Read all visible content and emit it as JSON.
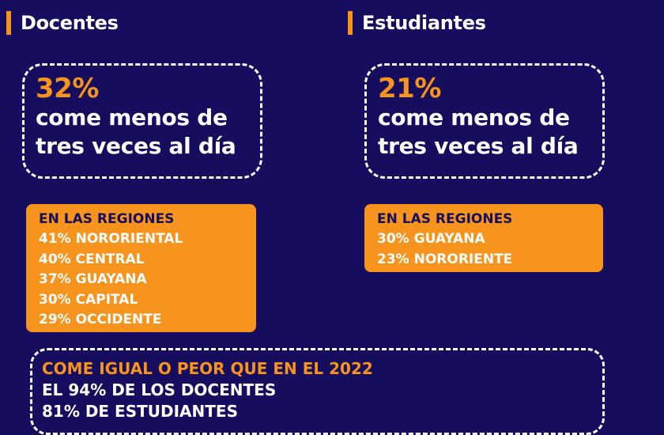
{
  "docentes": {
    "title": "Docentes",
    "stat": {
      "percent": "32%",
      "line1": "come menos de",
      "line2": "tres veces al día"
    },
    "regions": {
      "heading": "EN LAS REGIONES",
      "items": [
        "41% NORORIENTAL",
        "40% CENTRAL",
        "37% GUAYANA",
        "30% CAPITAL",
        "29% OCCIDENTE"
      ]
    }
  },
  "estudiantes": {
    "title": "Estudiantes",
    "stat": {
      "percent": "21%",
      "line1": "come menos de",
      "line2": "tres veces al día"
    },
    "regions": {
      "heading": "EN LAS REGIONES",
      "items": [
        "30% GUAYANA",
        "23% NORORIENTE"
      ]
    }
  },
  "comparison": {
    "heading": "COME IGUAL O PEOR QUE EN EL 2022",
    "lines": [
      "EL 94% DE LOS DOCENTES",
      "81% DE ESTUDIANTES"
    ]
  },
  "colors": {
    "background": "#170d5e",
    "accent": "#f7941d",
    "text": "#ffffff"
  }
}
